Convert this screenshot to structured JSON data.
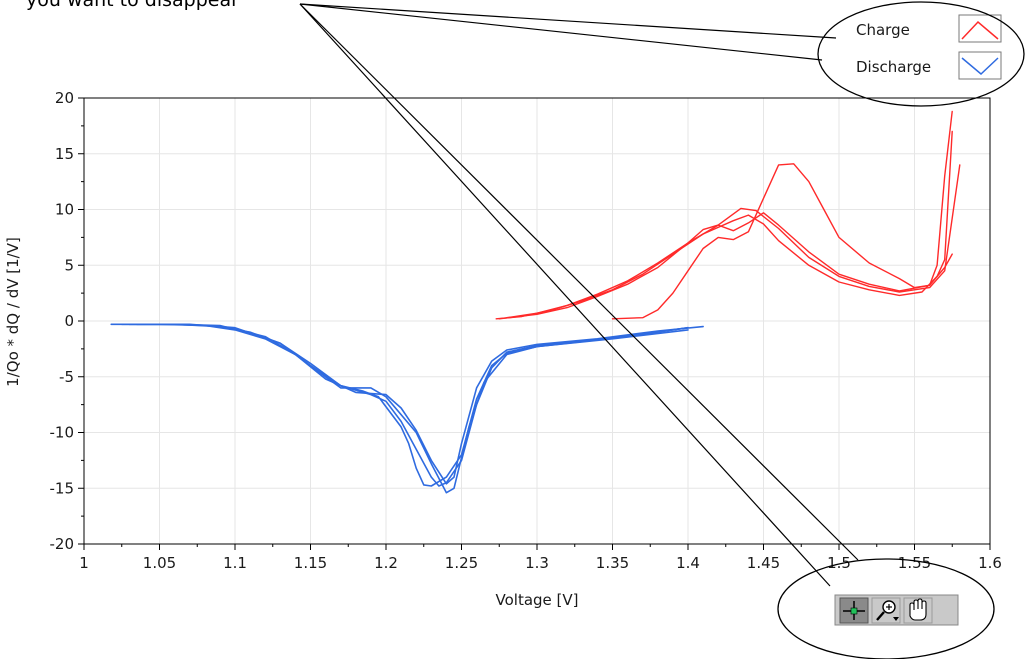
{
  "annotation": {
    "text": "you want to disappear"
  },
  "palette": {
    "charge": "#ff2a2a",
    "discharge": "#2f6be0",
    "frame": "#000000",
    "toolbar_bg": "#c9c9c9",
    "toolbar_active": "#8a8a8a"
  },
  "toolbar": {
    "tools": [
      {
        "name": "cursor-tool",
        "icon": "crosshair-icon"
      },
      {
        "name": "zoom-tool",
        "icon": "zoom-icon"
      },
      {
        "name": "pan-tool",
        "icon": "hand-icon"
      }
    ]
  },
  "chart_data": {
    "type": "line",
    "title": "",
    "xlabel": "Voltage [V]",
    "ylabel": "1/Qo * dQ / dV [1/V]",
    "xlim": [
      1,
      1.6
    ],
    "ylim": [
      -20,
      20
    ],
    "xticks": [
      "1",
      "1.05",
      "1.1",
      "1.15",
      "1.2",
      "1.25",
      "1.3",
      "1.35",
      "1.4",
      "1.45",
      "1.5",
      "1.55",
      "1.6"
    ],
    "yticks": [
      "20",
      "15",
      "10",
      "5",
      "0",
      "-5",
      "-10",
      "-15",
      "-20"
    ],
    "grid": true,
    "legend_position": "top-right",
    "legend": [
      {
        "label": "Charge",
        "key": "charge"
      },
      {
        "label": "Discharge",
        "key": "discharge"
      }
    ],
    "series": [
      {
        "name": "Charge",
        "key": "charge",
        "points": [
          [
            1.273,
            0.2
          ],
          [
            1.29,
            0.4
          ],
          [
            1.31,
            1.0
          ],
          [
            1.33,
            1.8
          ],
          [
            1.35,
            2.8
          ],
          [
            1.37,
            4.2
          ],
          [
            1.39,
            6.0
          ],
          [
            1.41,
            7.8
          ],
          [
            1.43,
            9.0
          ],
          [
            1.44,
            9.5
          ],
          [
            1.45,
            8.7
          ],
          [
            1.46,
            7.2
          ],
          [
            1.48,
            5.0
          ],
          [
            1.5,
            3.5
          ],
          [
            1.52,
            2.8
          ],
          [
            1.54,
            2.3
          ],
          [
            1.555,
            2.6
          ],
          [
            1.565,
            4.0
          ],
          [
            1.57,
            5.5
          ],
          [
            1.575,
            17.0
          ]
        ]
      },
      {
        "name": "Charge",
        "key": "charge",
        "points": [
          [
            1.28,
            0.3
          ],
          [
            1.3,
            0.7
          ],
          [
            1.32,
            1.4
          ],
          [
            1.34,
            2.4
          ],
          [
            1.36,
            3.6
          ],
          [
            1.38,
            5.2
          ],
          [
            1.4,
            7.0
          ],
          [
            1.42,
            8.6
          ],
          [
            1.435,
            10.1
          ],
          [
            1.445,
            9.9
          ],
          [
            1.46,
            8.3
          ],
          [
            1.48,
            5.7
          ],
          [
            1.5,
            4.0
          ],
          [
            1.52,
            3.1
          ],
          [
            1.54,
            2.6
          ],
          [
            1.56,
            3.0
          ],
          [
            1.57,
            4.5
          ],
          [
            1.58,
            14.0
          ]
        ]
      },
      {
        "name": "Charge",
        "key": "charge",
        "points": [
          [
            1.275,
            0.2
          ],
          [
            1.3,
            0.6
          ],
          [
            1.32,
            1.2
          ],
          [
            1.34,
            2.2
          ],
          [
            1.36,
            3.3
          ],
          [
            1.38,
            4.8
          ],
          [
            1.4,
            7.0
          ],
          [
            1.41,
            8.2
          ],
          [
            1.42,
            8.6
          ],
          [
            1.43,
            8.1
          ],
          [
            1.44,
            8.8
          ],
          [
            1.45,
            9.7
          ],
          [
            1.46,
            8.6
          ],
          [
            1.48,
            6.2
          ],
          [
            1.5,
            4.2
          ],
          [
            1.52,
            3.3
          ],
          [
            1.54,
            2.7
          ],
          [
            1.56,
            3.2
          ],
          [
            1.565,
            5.0
          ],
          [
            1.57,
            13.0
          ],
          [
            1.575,
            18.8
          ]
        ]
      },
      {
        "name": "Charge",
        "key": "charge",
        "points": [
          [
            1.35,
            0.2
          ],
          [
            1.37,
            0.3
          ],
          [
            1.38,
            1.0
          ],
          [
            1.39,
            2.5
          ],
          [
            1.4,
            4.5
          ],
          [
            1.41,
            6.5
          ],
          [
            1.42,
            7.5
          ],
          [
            1.43,
            7.3
          ],
          [
            1.44,
            8.0
          ],
          [
            1.45,
            11.0
          ],
          [
            1.46,
            14.0
          ],
          [
            1.47,
            14.1
          ],
          [
            1.48,
            12.5
          ],
          [
            1.49,
            10.0
          ],
          [
            1.5,
            7.5
          ],
          [
            1.52,
            5.2
          ],
          [
            1.54,
            3.8
          ],
          [
            1.55,
            3.0
          ],
          [
            1.56,
            3.2
          ],
          [
            1.57,
            4.8
          ],
          [
            1.575,
            6.0
          ]
        ]
      },
      {
        "name": "Discharge",
        "key": "discharge",
        "points": [
          [
            1.018,
            -0.3
          ],
          [
            1.05,
            -0.3
          ],
          [
            1.08,
            -0.4
          ],
          [
            1.1,
            -0.8
          ],
          [
            1.12,
            -1.6
          ],
          [
            1.14,
            -3.0
          ],
          [
            1.16,
            -5.2
          ],
          [
            1.18,
            -6.4
          ],
          [
            1.2,
            -6.6
          ],
          [
            1.21,
            -7.8
          ],
          [
            1.22,
            -9.8
          ],
          [
            1.23,
            -12.5
          ],
          [
            1.24,
            -14.6
          ],
          [
            1.245,
            -14.0
          ],
          [
            1.25,
            -11.0
          ],
          [
            1.26,
            -6.0
          ],
          [
            1.27,
            -3.6
          ],
          [
            1.28,
            -2.6
          ],
          [
            1.3,
            -2.1
          ],
          [
            1.34,
            -1.6
          ],
          [
            1.38,
            -0.9
          ],
          [
            1.41,
            -0.5
          ]
        ]
      },
      {
        "name": "Discharge",
        "key": "discharge",
        "points": [
          [
            1.025,
            -0.3
          ],
          [
            1.06,
            -0.3
          ],
          [
            1.09,
            -0.5
          ],
          [
            1.11,
            -1.0
          ],
          [
            1.13,
            -2.0
          ],
          [
            1.15,
            -3.8
          ],
          [
            1.17,
            -5.8
          ],
          [
            1.19,
            -6.6
          ],
          [
            1.2,
            -7.2
          ],
          [
            1.21,
            -9.0
          ],
          [
            1.22,
            -11.5
          ],
          [
            1.23,
            -14.0
          ],
          [
            1.235,
            -14.8
          ],
          [
            1.24,
            -14.5
          ],
          [
            1.25,
            -12.5
          ],
          [
            1.26,
            -7.5
          ],
          [
            1.27,
            -4.2
          ],
          [
            1.28,
            -2.8
          ],
          [
            1.3,
            -2.2
          ],
          [
            1.34,
            -1.7
          ],
          [
            1.38,
            -1.0
          ],
          [
            1.4,
            -0.6
          ]
        ]
      },
      {
        "name": "Discharge",
        "key": "discharge",
        "points": [
          [
            1.03,
            -0.3
          ],
          [
            1.06,
            -0.3
          ],
          [
            1.09,
            -0.4
          ],
          [
            1.12,
            -1.4
          ],
          [
            1.14,
            -3.0
          ],
          [
            1.16,
            -5.0
          ],
          [
            1.17,
            -6.0
          ],
          [
            1.19,
            -6.0
          ],
          [
            1.2,
            -6.8
          ],
          [
            1.22,
            -10.0
          ],
          [
            1.23,
            -12.8
          ],
          [
            1.24,
            -15.4
          ],
          [
            1.245,
            -15.0
          ],
          [
            1.255,
            -9.5
          ],
          [
            1.265,
            -5.5
          ],
          [
            1.28,
            -3.0
          ],
          [
            1.3,
            -2.3
          ],
          [
            1.34,
            -1.7
          ],
          [
            1.38,
            -1.0
          ],
          [
            1.4,
            -0.6
          ]
        ]
      },
      {
        "name": "Discharge",
        "key": "discharge",
        "points": [
          [
            1.035,
            -0.3
          ],
          [
            1.07,
            -0.3
          ],
          [
            1.1,
            -0.6
          ],
          [
            1.13,
            -2.0
          ],
          [
            1.15,
            -4.0
          ],
          [
            1.17,
            -5.8
          ],
          [
            1.185,
            -6.3
          ],
          [
            1.195,
            -6.8
          ],
          [
            1.21,
            -9.5
          ],
          [
            1.215,
            -11.0
          ],
          [
            1.22,
            -13.2
          ],
          [
            1.225,
            -14.7
          ],
          [
            1.23,
            -14.8
          ],
          [
            1.24,
            -14.0
          ],
          [
            1.25,
            -12.0
          ],
          [
            1.26,
            -7.0
          ],
          [
            1.27,
            -4.0
          ],
          [
            1.28,
            -2.9
          ],
          [
            1.3,
            -2.3
          ],
          [
            1.35,
            -1.6
          ],
          [
            1.4,
            -0.8
          ]
        ]
      }
    ]
  }
}
